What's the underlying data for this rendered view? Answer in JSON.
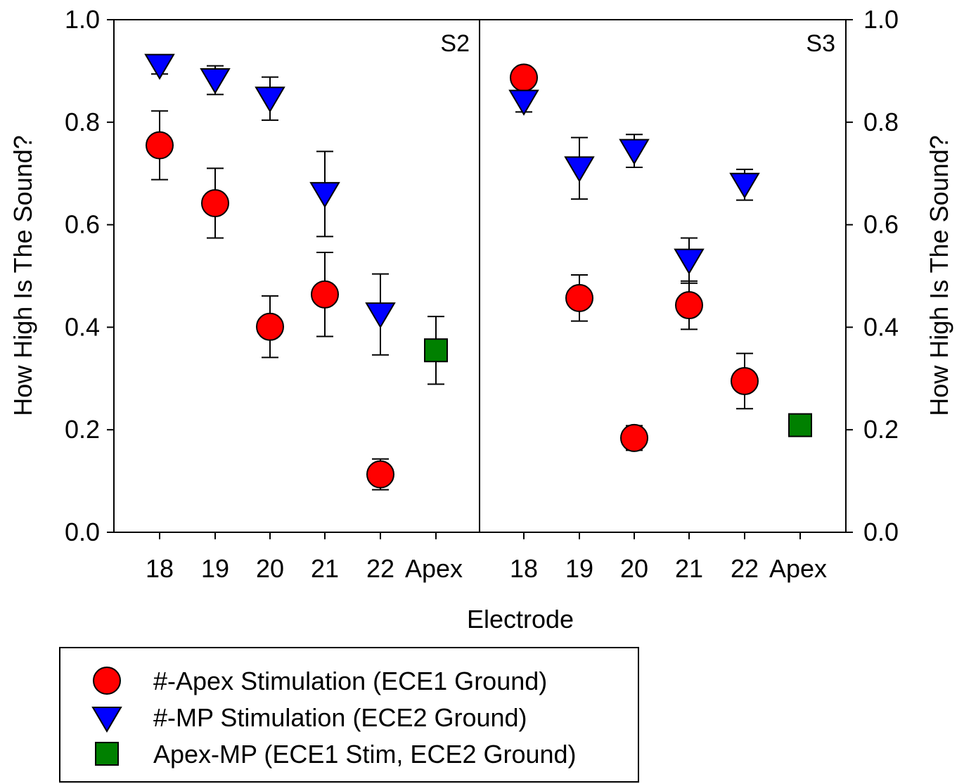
{
  "chart_data": {
    "type": "scatter",
    "xlabel": "Electrode",
    "ylabel_left": "How High Is The Sound?",
    "ylabel_right": "How High Is The Sound?",
    "ylim": [
      0,
      1
    ],
    "yticks": [
      "0.0",
      "0.2",
      "0.4",
      "0.6",
      "0.8",
      "1.0"
    ],
    "ytick_values": [
      0,
      0.2,
      0.4,
      0.6,
      0.8,
      1.0
    ],
    "categories": [
      "18",
      "19",
      "20",
      "21",
      "22",
      "Apex"
    ],
    "grid": false,
    "legend_position": "bottom-left",
    "panels": [
      {
        "label": "S2",
        "series": [
          {
            "name": "#-Apex Stimulation (ECE1 Ground)",
            "marker": "circle",
            "color": "#ff0000",
            "x": [
              "18",
              "19",
              "20",
              "21",
              "22"
            ],
            "y": [
              0.755,
              0.642,
              0.401,
              0.464,
              0.113
            ],
            "err": [
              0.067,
              0.068,
              0.06,
              0.082,
              0.03
            ]
          },
          {
            "name": "#-MP Stimulation (ECE2 Ground)",
            "marker": "triangle-down",
            "color": "#0000ff",
            "x": [
              "18",
              "19",
              "20",
              "21",
              "22"
            ],
            "y": [
              0.91,
              0.882,
              0.846,
              0.66,
              0.425
            ],
            "err": [
              0.016,
              0.028,
              0.042,
              0.083,
              0.079
            ]
          },
          {
            "name": "Apex-MP (ECE1 Stim, ECE2 Ground)",
            "marker": "square",
            "color": "#008000",
            "x": [
              "Apex"
            ],
            "y": [
              0.355
            ],
            "err": [
              0.066
            ]
          }
        ]
      },
      {
        "label": "S3",
        "series": [
          {
            "name": "#-Apex Stimulation (ECE1 Ground)",
            "marker": "circle",
            "color": "#ff0000",
            "x": [
              "18",
              "19",
              "20",
              "21",
              "22"
            ],
            "y": [
              0.887,
              0.457,
              0.184,
              0.443,
              0.295
            ],
            "err": [
              0.0,
              0.045,
              0.024,
              0.047,
              0.054
            ]
          },
          {
            "name": "#-MP Stimulation (ECE2 Ground)",
            "marker": "triangle-down",
            "color": "#0000ff",
            "x": [
              "18",
              "19",
              "20",
              "21",
              "22"
            ],
            "y": [
              0.84,
              0.71,
              0.744,
              0.53,
              0.678
            ],
            "err": [
              0.02,
              0.06,
              0.032,
              0.044,
              0.03
            ]
          },
          {
            "name": "Apex-MP (ECE1 Stim, ECE2 Ground)",
            "marker": "square",
            "color": "#008000",
            "x": [
              "Apex"
            ],
            "y": [
              0.209
            ],
            "err": [
              0.0
            ]
          }
        ]
      }
    ]
  },
  "legend": {
    "items": [
      {
        "label": "#-Apex Stimulation (ECE1 Ground)",
        "marker": "circle",
        "color": "#ff0000"
      },
      {
        "label": "#-MP Stimulation (ECE2 Ground)",
        "marker": "triangle-down",
        "color": "#0000ff"
      },
      {
        "label": "Apex-MP (ECE1 Stim, ECE2 Ground)",
        "marker": "square",
        "color": "#008000"
      }
    ]
  }
}
